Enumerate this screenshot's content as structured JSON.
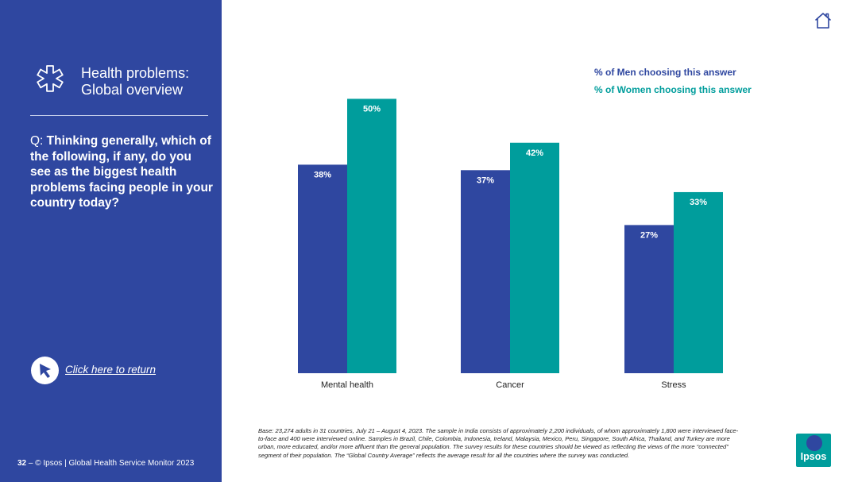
{
  "slide": {
    "title_line1": "Health problems:",
    "title_line2": "Global overview",
    "question_prefix": "Q: ",
    "question_text": "Thinking generally, which of the following, if any, do you see as the biggest health problems facing people in your country today?",
    "return_link": "Click here to return",
    "footer_page": "32",
    "footer_text": " – © Ipsos | Global Health Service Monitor 2023",
    "base_note": "Base: 23,274 adults in 31 countries, July 21 – August 4, 2023. The sample in India consists of approximately 2,200 individuals, of whom approximately 1,800 were interviewed face-to-face and 400 were interviewed online. Samples in Brazil, Chile, Colombia, Indonesia, Ireland, Malaysia, Mexico, Peru, Singapore, South Africa, Thailand, and Turkey are more urban, more educated, and/or more affluent than the general population. The survey results for these countries should be viewed as reflecting the views of the more “connected” segment of their population. The “Global Country Average” reflects the average result for all the countries where the survey was conducted.",
    "logo_text": "Ipsos"
  },
  "icons": {
    "title_icon": "medical-cross-icon",
    "return_icon": "cursor-arrow-icon",
    "home_icon": "home-icon"
  },
  "colors": {
    "sidebar": "#2f47a0",
    "men": "#2f47a0",
    "women": "#009d9c"
  },
  "chart_data": {
    "type": "bar",
    "title": "",
    "xlabel": "",
    "ylabel": "",
    "ylim": [
      0,
      56
    ],
    "categories": [
      "Mental health",
      "Cancer",
      "Stress"
    ],
    "series": [
      {
        "name": "% of Men choosing this answer",
        "values": [
          38,
          37,
          27
        ],
        "labels": [
          "38%",
          "37%",
          "27%"
        ],
        "color": "#2f47a0"
      },
      {
        "name": "% of Women choosing this answer",
        "values": [
          50,
          42,
          33
        ],
        "labels": [
          "50%",
          "42%",
          "33%"
        ],
        "color": "#009d9c"
      }
    ]
  }
}
